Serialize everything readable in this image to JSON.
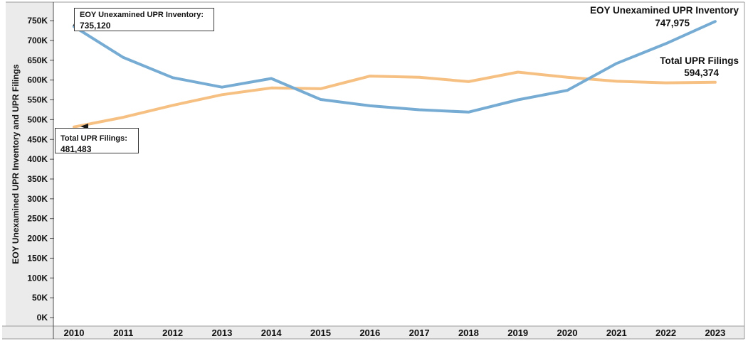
{
  "y_axis": {
    "title": "EOY Unexamined UPR Inventory and UPR Filings",
    "tick_labels": [
      "750K",
      "700K",
      "650K",
      "600K",
      "550K",
      "500K",
      "450K",
      "400K",
      "350K",
      "300K",
      "250K",
      "200K",
      "150K",
      "100K",
      "50K",
      "0K"
    ]
  },
  "x_axis": {
    "labels": [
      "2010",
      "2011",
      "2012",
      "2013",
      "2014",
      "2015",
      "2016",
      "2017",
      "2018",
      "2019",
      "2020",
      "2021",
      "2022",
      "2023"
    ]
  },
  "end_labels": {
    "inventory_name": "EOY Unexamined UPR Inventory",
    "inventory_value": "747,975",
    "filings_name": "Total UPR Filings",
    "filings_value": "594,374"
  },
  "annotations": {
    "inventory_start_label": "EOY Unexamined UPR Inventory:",
    "inventory_start_value": "735,120",
    "filings_start_label": "Total UPR Filings:",
    "filings_start_value": "481,483"
  },
  "colors": {
    "inventory_line": "#76ACD3",
    "filings_line": "#F7C083",
    "axis_strip_bg": "#EBEBEB",
    "border": "#9B9B9B",
    "axis_line": "#4D4D4D",
    "text": "#111111"
  },
  "chart_data": {
    "type": "line",
    "x": [
      2010,
      2011,
      2012,
      2013,
      2014,
      2015,
      2016,
      2017,
      2018,
      2019,
      2020,
      2021,
      2022,
      2023
    ],
    "series": [
      {
        "name": "EOY Unexamined UPR Inventory",
        "color_key": "inventory_line",
        "values": [
          735120,
          657000,
          606000,
          582000,
          604000,
          551000,
          535000,
          525000,
          519000,
          550000,
          574000,
          642000,
          692000,
          747975
        ]
      },
      {
        "name": "Total UPR Filings",
        "color_key": "filings_line",
        "values": [
          481483,
          506000,
          536000,
          563000,
          580000,
          578000,
          610000,
          607000,
          596000,
          620000,
          607000,
          597000,
          593000,
          594374
        ]
      }
    ],
    "title": "",
    "xlabel": "",
    "ylabel": "EOY Unexamined UPR Inventory and UPR Filings",
    "ylim": [
      0,
      780000
    ],
    "y_tick_step": 50000,
    "grid": false,
    "legend_position": "inline-end-of-line"
  }
}
